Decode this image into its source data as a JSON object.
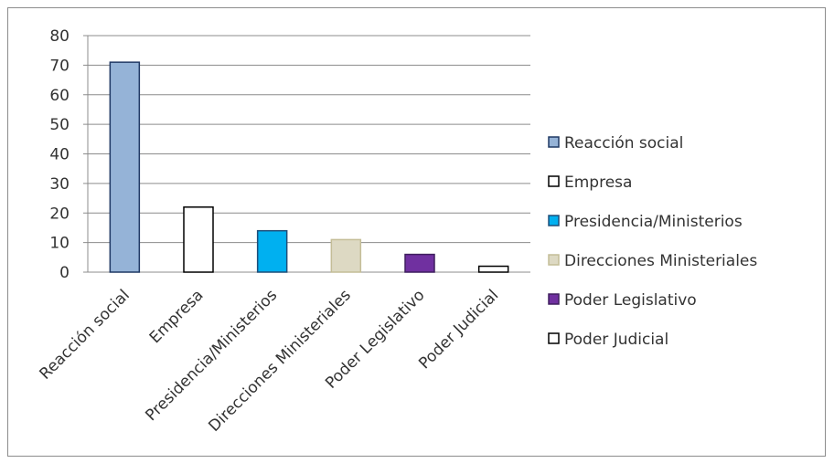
{
  "chart_data": {
    "type": "bar",
    "title": "",
    "xlabel": "",
    "ylabel": "",
    "categories": [
      "Reacción social",
      "Empresa",
      "Presidencia/Ministerios",
      "Direcciones Ministeriales",
      "Poder Legislativo",
      "Poder Judicial"
    ],
    "values": [
      71,
      22,
      14,
      11,
      6,
      2
    ],
    "colors": [
      "#95b3d7",
      "#ffffff",
      "#00b0f0",
      "#ddd9c3",
      "#7030a0",
      "#ffffff"
    ],
    "outlines": [
      "#1f3864",
      "#000000",
      "#1f4e79",
      "#c4bd97",
      "#3f1f5f",
      "#000000"
    ],
    "ylim": [
      0,
      80
    ],
    "yticks": [
      0,
      10,
      20,
      30,
      40,
      50,
      60,
      70,
      80
    ],
    "grid": true,
    "legend": {
      "position": "right",
      "entries": [
        "Reacción social",
        "Empresa",
        "Presidencia/Ministerios",
        "Direcciones Ministeriales",
        "Poder Legislativo",
        "Poder Judicial"
      ]
    }
  }
}
